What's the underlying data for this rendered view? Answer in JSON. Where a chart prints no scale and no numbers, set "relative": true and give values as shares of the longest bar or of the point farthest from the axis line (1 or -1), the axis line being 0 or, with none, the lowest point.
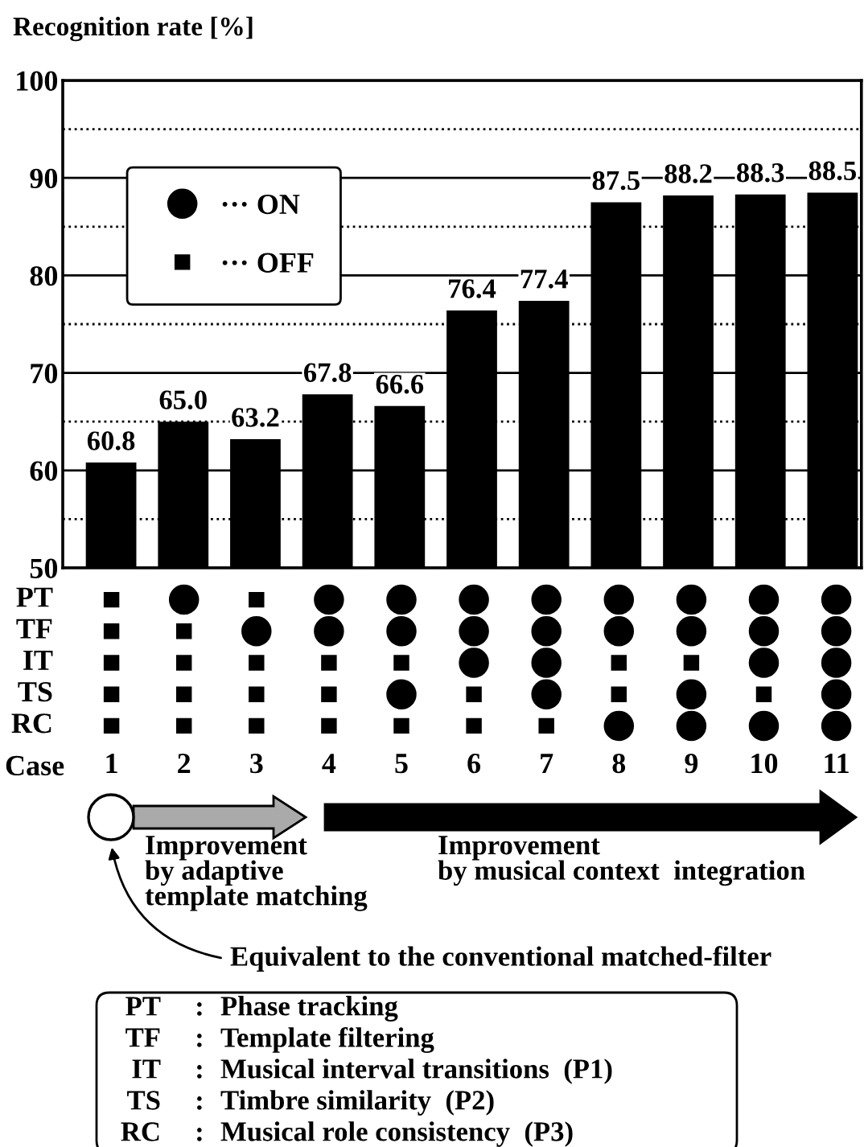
{
  "chart_data": [
    {
      "type": "bar",
      "ylabel": "Recognition rate [%]",
      "categories": [
        "1",
        "2",
        "3",
        "4",
        "5",
        "6",
        "7",
        "8",
        "9",
        "10",
        "11"
      ],
      "values": [
        60.8,
        65.0,
        63.2,
        67.8,
        66.6,
        76.4,
        77.4,
        87.5,
        88.2,
        88.3,
        88.5
      ],
      "value_labels": [
        "60.8",
        "65.0",
        "63.2",
        "67.8",
        "66.6",
        "76.4",
        "77.4",
        "87.5",
        "88.2",
        "88.3",
        "88.5"
      ],
      "color": "#000000",
      "ylim": [
        50,
        100
      ],
      "yticks": [
        50,
        60,
        70,
        80,
        90,
        100
      ],
      "grid": "y",
      "tick_labels": "y",
      "ref_lines": [
        {
          "axis": "y",
          "value": 55,
          "color": "#000000",
          "line_style": "dotted"
        },
        {
          "axis": "y",
          "value": 65,
          "color": "#000000",
          "line_style": "dotted"
        },
        {
          "axis": "y",
          "value": 75,
          "color": "#000000",
          "line_style": "dotted"
        },
        {
          "axis": "y",
          "value": 85,
          "color": "#000000",
          "line_style": "dotted"
        },
        {
          "axis": "y",
          "value": 95,
          "color": "#000000",
          "line_style": "dotted"
        }
      ]
    },
    {
      "type": "scatter",
      "xlabel": "Case",
      "xlim": [
        1,
        11
      ],
      "xticks": [
        1,
        2,
        3,
        4,
        5,
        6,
        7,
        8,
        9,
        10,
        11
      ],
      "relative": true,
      "legend": "top left",
      "series": [
        {
          "name": "··· ON",
          "color": "#000000",
          "marker": "circle",
          "x": [
            2,
            3,
            4,
            4,
            5,
            5,
            5,
            6,
            6,
            6,
            7,
            7,
            7,
            7,
            8,
            8,
            8,
            9,
            9,
            9,
            9,
            10,
            10,
            10,
            10,
            11,
            11,
            11,
            11,
            11
          ],
          "values": [
            1,
            0.75,
            1,
            0.75,
            1,
            0.75,
            0.25,
            1,
            0.75,
            0.5,
            1,
            0.75,
            0.5,
            0.25,
            1,
            0.75,
            0,
            1,
            0.75,
            0.25,
            0,
            1,
            0.75,
            0.5,
            0,
            1,
            0.75,
            0.5,
            0.25,
            0
          ]
        },
        {
          "name": "··· OFF",
          "color": "#000000",
          "marker": "square",
          "x": [
            1,
            1,
            1,
            1,
            1,
            2,
            2,
            2,
            2,
            3,
            3,
            3,
            3,
            4,
            4,
            4,
            5,
            5,
            6,
            6,
            7,
            8,
            8,
            9,
            10
          ],
          "values": [
            1,
            0.75,
            0.5,
            0.25,
            0,
            0.75,
            0.5,
            0.25,
            0,
            1,
            0.5,
            0.25,
            0,
            0.5,
            0.25,
            0,
            0.5,
            0,
            0.25,
            0,
            0,
            0.5,
            0.25,
            0.5,
            0.25
          ]
        }
      ],
      "annotations": [
        "PT",
        "TF",
        "IT",
        "TS",
        "RC",
        "Improvement\nby adaptive\ntemplate matching",
        "Improvement\nby musical context  integration",
        "Equivalent to the conventional matched-filter",
        "PT : Phase tracking",
        "TF : Template filtering",
        "IT : Musical interval transitions  (P1)",
        "TS : Timbre similarity  (P2)",
        "RC : Musical role consistency  (P3)"
      ]
    }
  ]
}
